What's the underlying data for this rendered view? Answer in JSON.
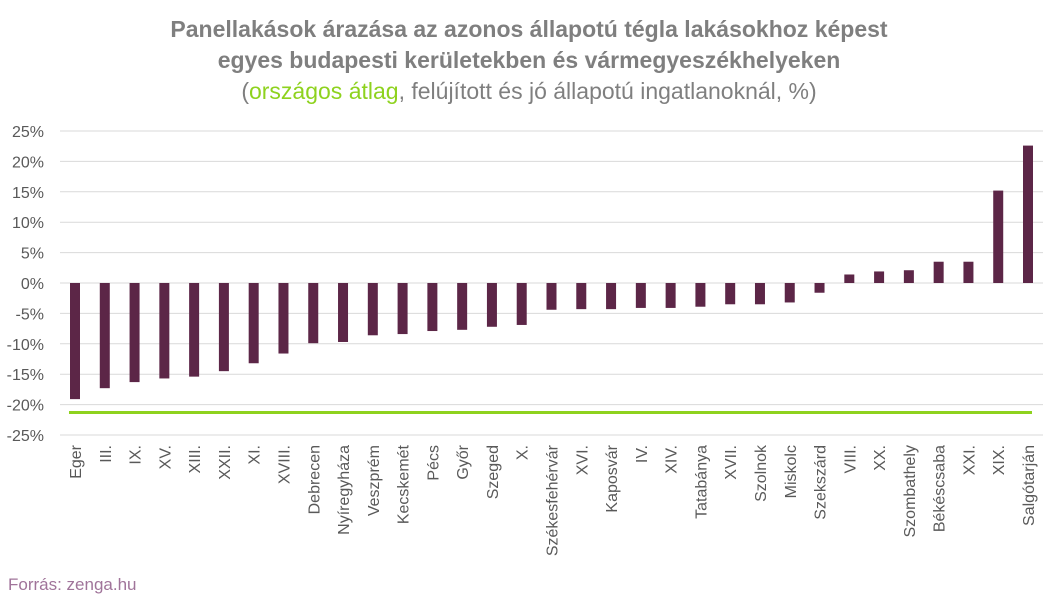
{
  "chart_data": {
    "type": "bar",
    "title_line1": "Panellakások árazása az azonos állapotú tégla lakásokhoz képest",
    "title_line2": "egyes budapesti kerületekben és vármegyeszékhelyeken",
    "subtitle_open": "(",
    "subtitle_highlight": "országos átlag",
    "subtitle_rest": ", felújított és jó állapotú ingatlanoknál, %)",
    "categories": [
      "Eger",
      "III.",
      "IX.",
      "XV.",
      "XIII.",
      "XXII.",
      "XI.",
      "XVIII.",
      "Debrecen",
      "Nyíregyháza",
      "Veszprém",
      "Kecskemét",
      "Pécs",
      "Győr",
      "Szeged",
      "X.",
      "Székesfehérvár",
      "XVI.",
      "Kaposvár",
      "IV.",
      "XIV.",
      "Tatabánya",
      "XVII.",
      "Szolnok",
      "Miskolc",
      "Szekszárd",
      "VIII.",
      "XX.",
      "Szombathely",
      "Békéscsaba",
      "XXI.",
      "XIX.",
      "Salgótarján"
    ],
    "values": [
      -19.1,
      -17.3,
      -16.3,
      -15.7,
      -15.4,
      -14.5,
      -13.2,
      -11.6,
      -9.9,
      -9.7,
      -8.6,
      -8.4,
      -7.9,
      -7.7,
      -7.2,
      -6.9,
      -4.4,
      -4.3,
      -4.3,
      -4.1,
      -4.1,
      -3.9,
      -3.5,
      -3.5,
      -3.2,
      -1.6,
      1.4,
      1.9,
      2.1,
      3.5,
      3.5,
      15.2,
      22.6
    ],
    "national_average": -21.3,
    "ylim": [
      -25,
      25
    ],
    "yticks": [
      25,
      20,
      15,
      10,
      5,
      0,
      -5,
      -10,
      -15,
      -20,
      -25
    ],
    "ytick_labels": [
      "25%",
      "20%",
      "15%",
      "10%",
      "5%",
      "0%",
      "-5%",
      "-10%",
      "-15%",
      "-20%",
      "-25%"
    ],
    "grid": true,
    "colors": {
      "bar": "#5c2647",
      "average_line": "#8ed21e",
      "grid": "#d9d9d9"
    }
  },
  "source": "Forrás: zenga.hu"
}
